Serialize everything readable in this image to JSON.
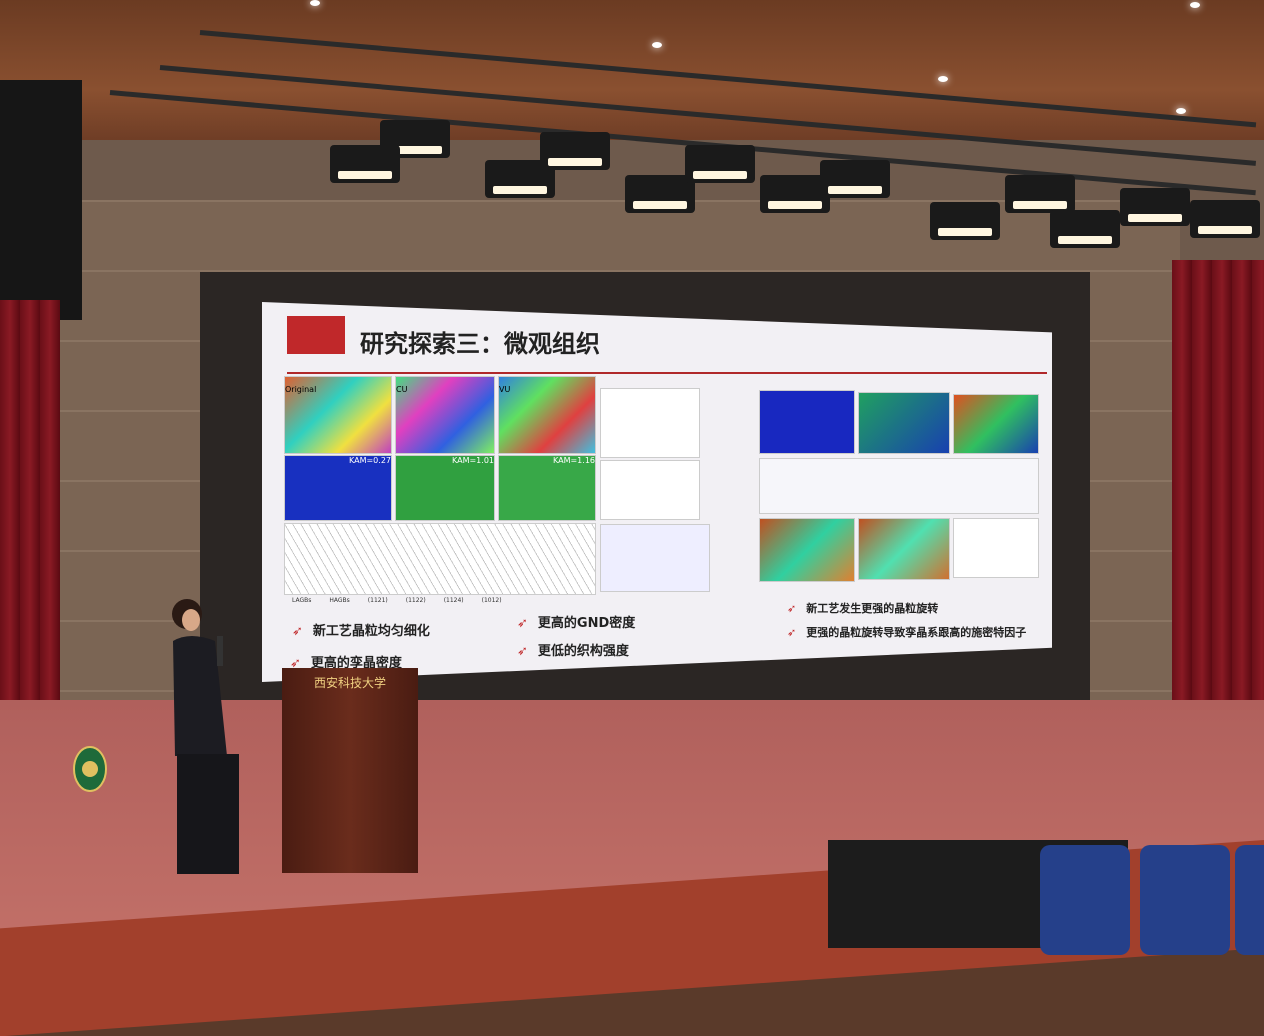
{
  "slide": {
    "title": "研究探索三：微观组织",
    "panel_labels": [
      "Original",
      "CU",
      "VU"
    ],
    "kam_labels": [
      "KAM=0.27",
      "KAM=1.01",
      "KAM=1.16"
    ],
    "bullets_left": [
      "新工艺晶粒均匀细化",
      "更高的孪晶密度",
      "更高的GND密度",
      "更低的织构强度"
    ],
    "bullets_right": [
      "新工艺发生更强的晶粒旋转",
      "更强的晶粒旋转导致孪晶系跟高的施密特因子"
    ],
    "legend": [
      "LAGBs",
      "HAGBs",
      "(1121)",
      "(1122)",
      "(1124)",
      "(1012)"
    ]
  },
  "podium": {
    "sign": "西安科技大学"
  },
  "colors": {
    "accent": "#c0282a",
    "slide_bg": "#f2f0f4",
    "curtain": "#7a1420",
    "stage": "#b8645e"
  }
}
